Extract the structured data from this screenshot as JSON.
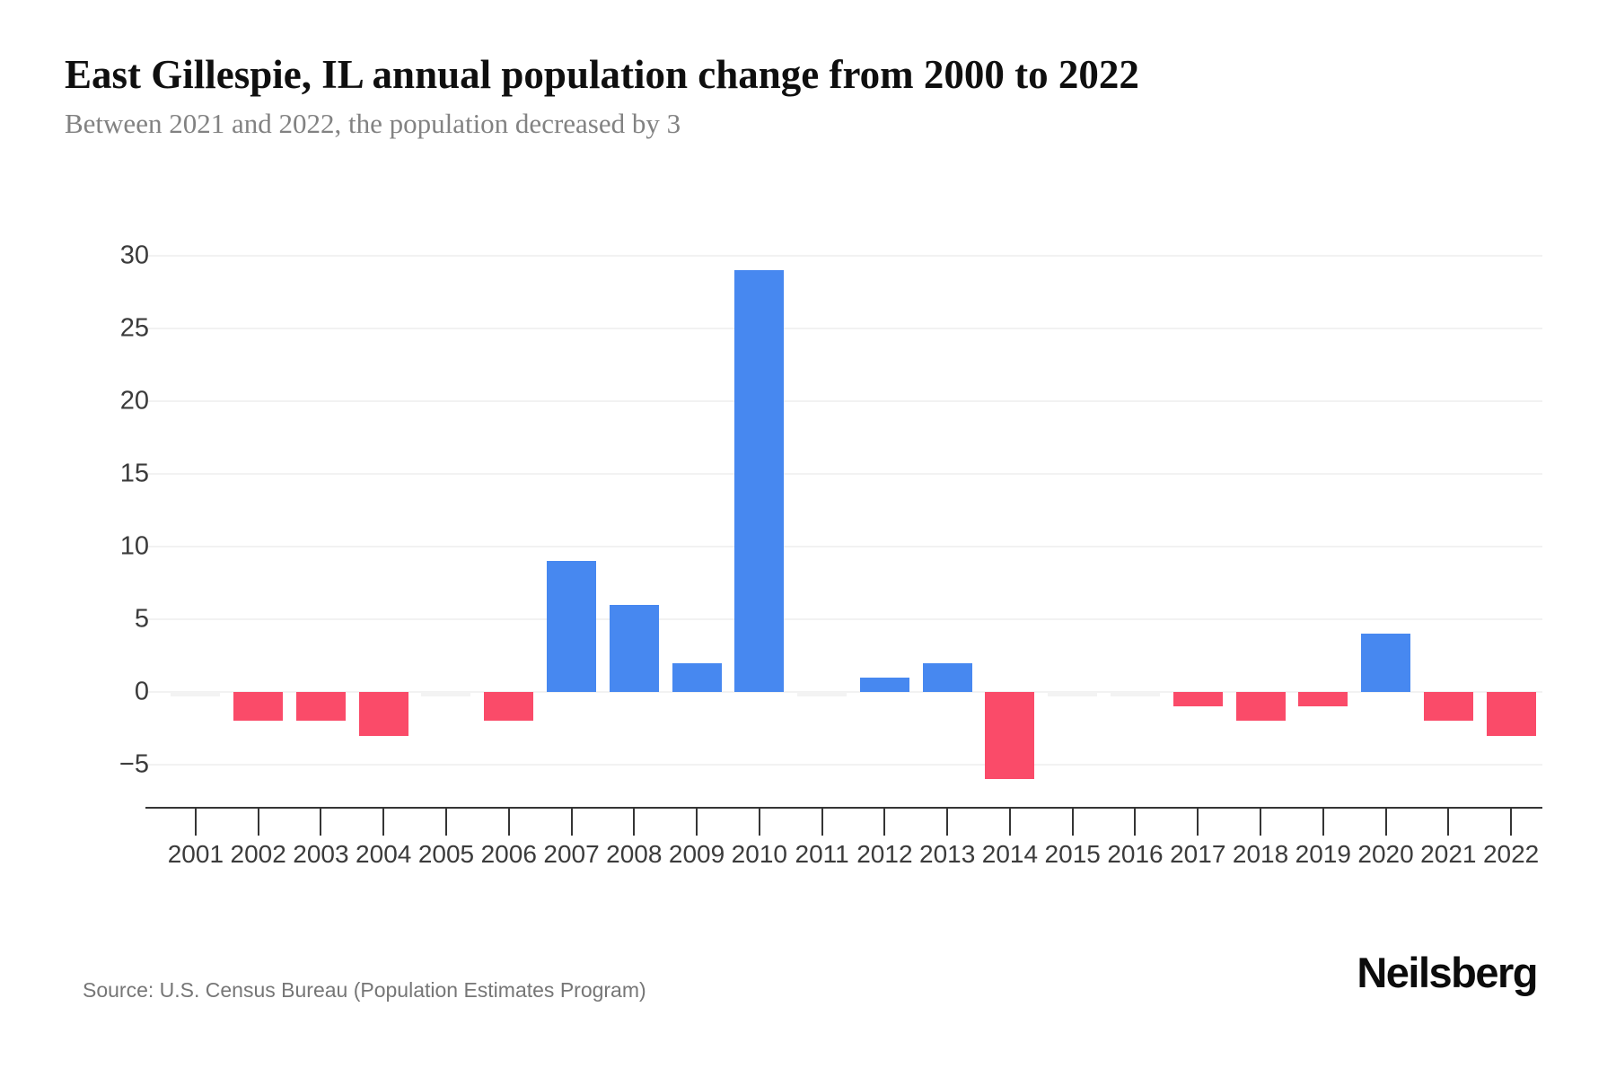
{
  "header": {
    "title": "East Gillespie, IL annual population change from 2000 to 2022",
    "subtitle": "Between 2021 and 2022, the population decreased by 3"
  },
  "footer": {
    "source": "Source: U.S. Census Bureau (Population Estimates Program)",
    "brand": "Neilsberg"
  },
  "colors": {
    "positive_bar": "#4788F0",
    "negative_bar": "#FA4B69",
    "zero_bar": "#f3f3f3",
    "grid_line": "#f2f2f2",
    "axis_line": "#353535",
    "axis_label": "#3b3b3b"
  },
  "chart_data": {
    "type": "bar",
    "title": "East Gillespie, IL annual population change from 2000 to 2022",
    "subtitle": "Between 2021 and 2022, the population decreased by 3",
    "xlabel": "",
    "ylabel": "",
    "categories": [
      "2001",
      "2002",
      "2003",
      "2004",
      "2005",
      "2006",
      "2007",
      "2008",
      "2009",
      "2010",
      "2011",
      "2012",
      "2013",
      "2014",
      "2015",
      "2016",
      "2017",
      "2018",
      "2019",
      "2020",
      "2021",
      "2022"
    ],
    "values": [
      0,
      -2,
      -2,
      -3,
      0,
      -2,
      9,
      6,
      2,
      29,
      0,
      1,
      2,
      -6,
      0,
      0,
      -1,
      -2,
      -1,
      4,
      -2,
      -3
    ],
    "yticks": [
      -5,
      0,
      5,
      10,
      15,
      20,
      25,
      30
    ],
    "ylim": [
      -5,
      30
    ],
    "grid": true,
    "legend": false,
    "positive_color_meaning": "population increase",
    "negative_color_meaning": "population decrease"
  }
}
